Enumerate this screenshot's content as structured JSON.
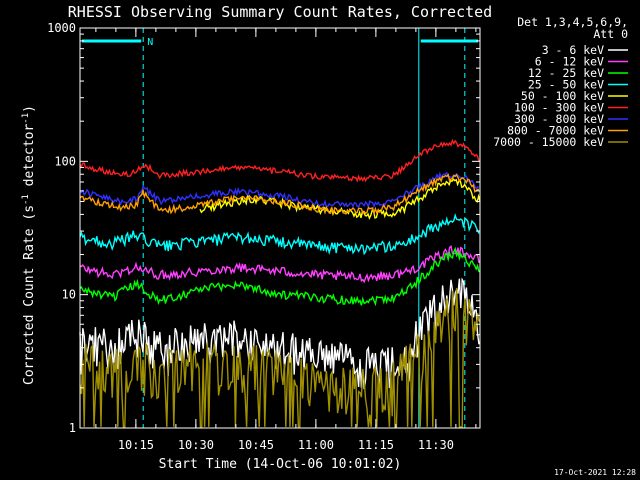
{
  "chart_data": {
    "type": "line",
    "title": "RHESSI Observing Summary Count Rates, Corrected",
    "xlabel": "Start Time (14-Oct-06 10:01:02)",
    "ylabel_main": "Corrected Count Rate (s",
    "ylabel_sup1": "-1",
    "ylabel_mid": " detector",
    "ylabel_sup2": "-1",
    "ylabel_end": ")",
    "y_scale": "log",
    "ylim": [
      1,
      1000
    ],
    "xlim_minutes": [
      0,
      100
    ],
    "x_ticks": [
      "10:15",
      "10:30",
      "10:45",
      "11:00",
      "11:15",
      "11:30"
    ],
    "x_tick_minutes": [
      13.97,
      28.97,
      43.97,
      58.97,
      73.97,
      88.97
    ],
    "y_ticks": [
      "1",
      "10",
      "100",
      "1000"
    ],
    "y_tick_values": [
      1,
      10,
      100,
      1000
    ],
    "legend_header": [
      "Det 1,3,4,5,6,9,",
      "Att 0"
    ],
    "legend_position": "right",
    "night_intervals": [
      [
        0,
        15.8
      ],
      [
        84.7,
        100
      ]
    ],
    "saa_marker": {
      "label": "N",
      "start": 15.8
    },
    "footer_date": "17-Oct-2021 12:28",
    "series": [
      {
        "name": "3 - 6 keV",
        "color": "#ffffff",
        "x": [
          0,
          8,
          14,
          20,
          30,
          40,
          50,
          60,
          70,
          78,
          82,
          86,
          90,
          94,
          97,
          100
        ],
        "y": [
          4.5,
          4,
          5,
          4,
          4.5,
          4.8,
          4,
          3.5,
          3,
          3,
          4,
          6,
          9,
          11,
          9,
          6
        ]
      },
      {
        "name": "6 - 12 keV",
        "color": "#ff40ff",
        "x": [
          0,
          8,
          14,
          20,
          30,
          40,
          50,
          60,
          70,
          78,
          82,
          86,
          90,
          94,
          97,
          100
        ],
        "y": [
          16,
          14,
          16,
          14,
          15,
          16,
          15,
          14,
          13.5,
          14,
          15,
          17,
          20,
          22,
          20,
          18
        ]
      },
      {
        "name": "12 - 25 keV",
        "color": "#00ff00",
        "x": [
          0,
          8,
          14,
          20,
          30,
          40,
          50,
          60,
          70,
          78,
          82,
          86,
          90,
          94,
          97,
          100
        ],
        "y": [
          11,
          9.5,
          12,
          9,
          11,
          12,
          10,
          9.5,
          9,
          9.5,
          11,
          14,
          18,
          21,
          18,
          15
        ]
      },
      {
        "name": "25 - 50 keV",
        "color": "#00ffff",
        "x": [
          0,
          8,
          14,
          20,
          30,
          40,
          50,
          60,
          70,
          78,
          82,
          86,
          90,
          94,
          97,
          100
        ],
        "y": [
          27,
          24,
          28,
          23,
          25,
          27,
          25,
          23,
          22.5,
          23,
          25,
          29,
          34,
          36,
          34,
          30
        ]
      },
      {
        "name": "50 - 100 keV",
        "color": "#ffff00",
        "x": [
          30,
          36,
          42,
          48,
          56,
          64,
          72,
          78,
          82,
          86,
          90,
          94,
          97,
          100
        ],
        "y": [
          44,
          48,
          52,
          50,
          45,
          42,
          40,
          41,
          46,
          55,
          66,
          70,
          62,
          50
        ]
      },
      {
        "name": "100 - 300 keV",
        "color": "#ff2020",
        "x": [
          0,
          4,
          10,
          14,
          15.8,
          20,
          30,
          40,
          50,
          60,
          70,
          78,
          82,
          86,
          90,
          94,
          97,
          100
        ],
        "y": [
          95,
          88,
          80,
          82,
          96,
          78,
          84,
          90,
          84,
          76,
          74,
          78,
          95,
          118,
          135,
          138,
          125,
          100
        ]
      },
      {
        "name": "300 - 800 keV",
        "color": "#3030ff",
        "x": [
          0,
          4,
          10,
          14,
          15.8,
          20,
          30,
          40,
          50,
          60,
          70,
          78,
          82,
          86,
          90,
          94,
          97,
          100
        ],
        "y": [
          60,
          56,
          50,
          52,
          64,
          50,
          55,
          60,
          55,
          48,
          47,
          50,
          58,
          68,
          78,
          80,
          74,
          62
        ]
      },
      {
        "name": "800 - 7000 keV",
        "color": "#ffa000",
        "x": [
          0,
          4,
          10,
          14,
          15.8,
          20,
          30,
          40,
          50,
          60,
          70,
          78,
          82,
          86,
          90,
          94,
          97,
          100
        ],
        "y": [
          55,
          50,
          45,
          47,
          58,
          42,
          47,
          54,
          50,
          43,
          42,
          45,
          53,
          64,
          74,
          76,
          70,
          58
        ]
      },
      {
        "name": "7000 - 15000 keV",
        "color": "#a09000",
        "x": [
          0,
          8,
          14,
          20,
          30,
          40,
          50,
          60,
          70,
          78,
          82,
          86,
          90,
          94,
          97,
          100
        ],
        "y": [
          3,
          2.8,
          3.2,
          2.6,
          3,
          3.2,
          2.6,
          2.2,
          2,
          2.2,
          3,
          4,
          6,
          8,
          7,
          5
        ]
      }
    ]
  }
}
